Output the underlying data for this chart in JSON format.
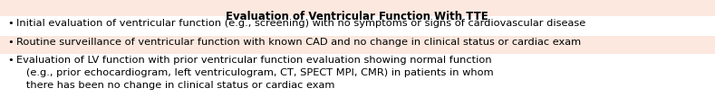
{
  "title": "Evaluation of Ventricular Function With TTE",
  "title_fontsize": 8.5,
  "bg_color": "#fce8df",
  "border_color": "#d4a090",
  "text_color": "#000000",
  "bullet": "•",
  "font_size": 8.2,
  "figsize": [
    7.89,
    1.18
  ],
  "dpi": 100,
  "row1_bg": "#ffffff",
  "row2_bg": "#fce8df",
  "row3_bg": "#ffffff",
  "line1": "Initial evaluation of ventricular function (e.g., screening) with no symptoms or signs of cardiovascular disease",
  "line2": "Routine surveillance of ventricular function with known CAD and no change in clinical status or cardiac exam",
  "line3a": "Evaluation of LV function with prior ventricular function evaluation showing normal function",
  "line3b": "   (e.g., prior echocardiogram, left ventriculogram, CT, SPECT MPI, CMR) in patients in whom",
  "line3c": "   there has been no change in clinical status or cardiac exam"
}
